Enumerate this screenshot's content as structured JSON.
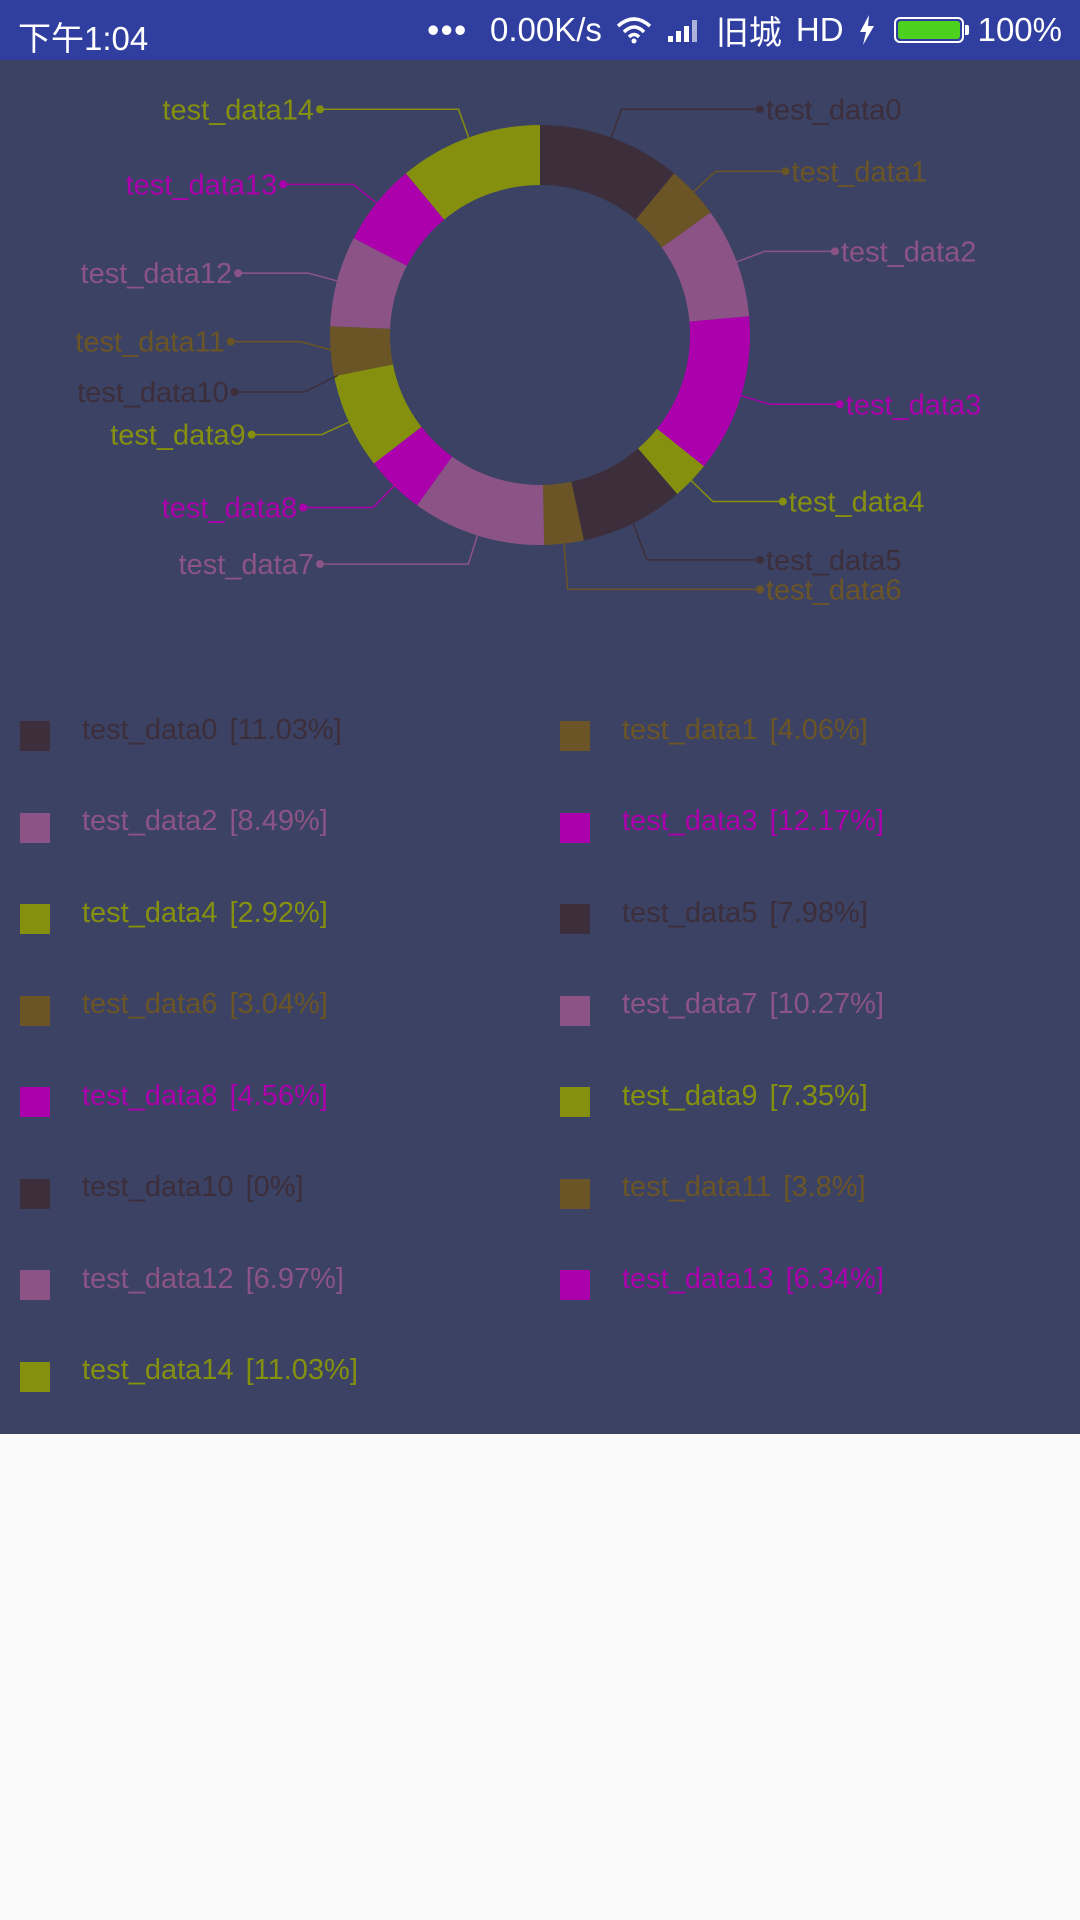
{
  "status_bar": {
    "time": "下午1:04",
    "dots": "•••",
    "speed": "0.00K/s",
    "wifi_icon": "wifi-icon",
    "signal_icon": "signal-icon",
    "carrier": "旧城",
    "hd": "HD",
    "charging_icon": "lightning-icon",
    "battery_level": 1.0,
    "battery_text": "100%"
  },
  "colors": {
    "status_bar": "#303f9f",
    "panel": "#3b4263",
    "battery": "#4cd21e"
  },
  "chart_data": {
    "type": "pie",
    "hole": true,
    "categories": [
      "test_data0",
      "test_data1",
      "test_data2",
      "test_data3",
      "test_data4",
      "test_data5",
      "test_data6",
      "test_data7",
      "test_data8",
      "test_data9",
      "test_data10",
      "test_data11",
      "test_data12",
      "test_data13",
      "test_data14"
    ],
    "values": [
      11.03,
      4.06,
      8.49,
      12.17,
      2.92,
      7.98,
      3.04,
      10.27,
      4.56,
      7.35,
      0,
      3.8,
      6.97,
      6.34,
      11.03
    ],
    "percent_labels": [
      "[11.03%]",
      "[4.06%]",
      "[8.49%]",
      "[12.17%]",
      "[2.92%]",
      "[7.98%]",
      "[3.04%]",
      "[10.27%]",
      "[4.56%]",
      "[7.35%]",
      "[0%]",
      "[3.8%]",
      "[6.97%]",
      "[6.34%]",
      "[11.03%]"
    ],
    "colors": [
      "#3d2e3c",
      "#6b5425",
      "#8c5486",
      "#ad00ad",
      "#85900f",
      "#3d2e3c",
      "#6b5425",
      "#8c5486",
      "#ad00ad",
      "#85900f",
      "#3d2e3c",
      "#6b5425",
      "#8c5486",
      "#ad00ad",
      "#85900f"
    ],
    "start_angle_deg": -90,
    "direction": "clockwise",
    "legend_position": "bottom, two columns"
  }
}
